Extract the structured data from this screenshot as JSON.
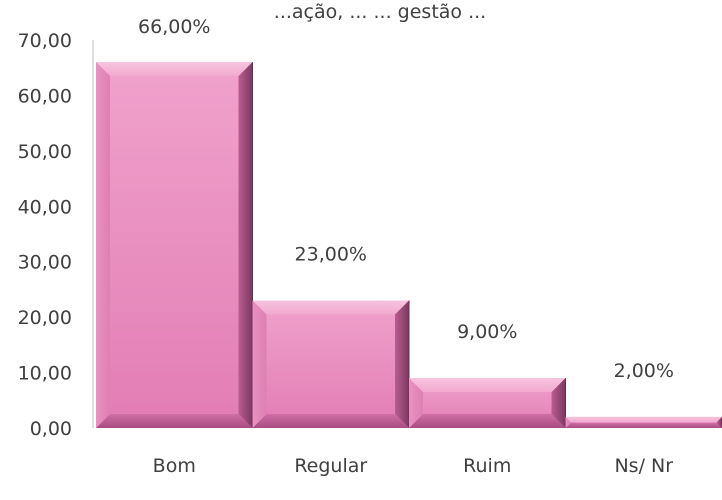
{
  "chart_data": {
    "type": "bar",
    "title": "...ação, ... ... gestão ...",
    "categories": [
      "Bom",
      "Regular",
      "Ruim",
      "Ns/ Nr"
    ],
    "values": [
      66.0,
      23.0,
      9.0,
      2.0
    ],
    "data_labels": [
      "66,00%",
      "23,00%",
      "9,00%",
      "2,00%"
    ],
    "ylim": [
      0,
      70
    ],
    "yticks": [
      0,
      10,
      20,
      30,
      40,
      50,
      60,
      70
    ],
    "ytick_labels": [
      "0,00",
      "10,00",
      "20,00",
      "30,00",
      "40,00",
      "50,00",
      "60,00",
      "70,00"
    ],
    "xlabel": "",
    "ylabel": "",
    "grid": false,
    "legend": "none",
    "bar_color": "#e87fb8",
    "bar_highlight": "#f6b6d8",
    "bar_shadow": "#9c4a78"
  }
}
